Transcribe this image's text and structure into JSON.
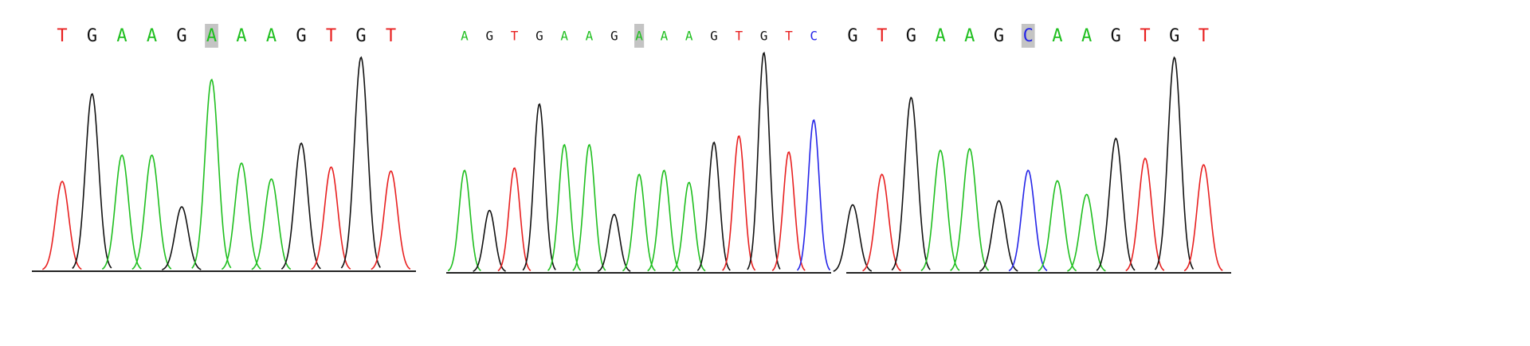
{
  "colors": {
    "A": "#1fbf1f",
    "G": "#111111",
    "T": "#e82020",
    "C": "#2424e8"
  },
  "ylim": [
    0,
    300
  ],
  "panels": [
    {
      "bases": [
        "T",
        "G",
        "A",
        "A",
        "G",
        "A",
        "A",
        "A",
        "G",
        "T",
        "G",
        "T"
      ],
      "highlight": 5,
      "peaks": [
        112,
        222,
        145,
        145,
        80,
        240,
        135,
        115,
        160,
        130,
        268,
        125
      ]
    },
    {
      "bases": [
        "A",
        "G",
        "T",
        "G",
        "A",
        "A",
        "G",
        "A",
        "A",
        "A",
        "G",
        "T",
        "G",
        "T",
        "C"
      ],
      "highlight": 7,
      "peaks": [
        127,
        77,
        130,
        210,
        159,
        159,
        72,
        122,
        127,
        112,
        162,
        170,
        274,
        150,
        190
      ]
    },
    {
      "bases": [
        "G",
        "T",
        "G",
        "A",
        "A",
        "G",
        "C",
        "A",
        "A",
        "G",
        "T",
        "G",
        "T"
      ],
      "highlight": 6,
      "peaks": [
        84,
        122,
        218,
        152,
        154,
        89,
        127,
        114,
        97,
        167,
        142,
        268,
        134
      ]
    }
  ]
}
